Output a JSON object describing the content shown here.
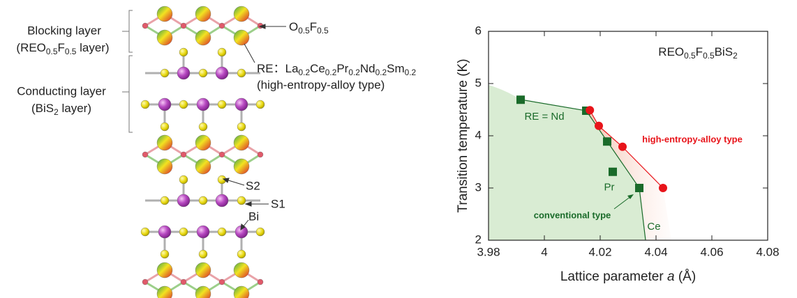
{
  "diagram": {
    "blocking_layer": {
      "label": "Blocking layer",
      "sublabel": [
        "(REO",
        "0.5",
        "F",
        "0.5",
        " layer)"
      ]
    },
    "conducting_layer": {
      "label": "Conducting layer",
      "sublabel": [
        "(BiS",
        "2",
        " layer)"
      ]
    },
    "annotations": {
      "of": [
        "O",
        "0.5",
        "F",
        "0.5"
      ],
      "re": [
        "RE：La",
        "0.2",
        "Ce",
        "0.2",
        "Pr",
        "0.2",
        "Nd",
        "0.2",
        "Sm",
        "0.2"
      ],
      "re_type": "(high-entropy-alloy type)",
      "s2": "S2",
      "s1": "S1",
      "bi": "Bi"
    }
  },
  "chart_data": {
    "type": "scatter",
    "inset_label": [
      "REO",
      "0.5",
      "F",
      "0.5",
      "BiS",
      "2"
    ],
    "x_label": [
      "Lattice parameter ",
      "a",
      " (Å)"
    ],
    "y_label": "Transition temperature (K)",
    "xlim": [
      3.98,
      4.08
    ],
    "xticks": [
      3.98,
      4,
      4.02,
      4.04,
      4.06,
      4.08
    ],
    "ylim": [
      2,
      6
    ],
    "yticks": [
      2,
      3,
      4,
      5,
      6
    ],
    "series": [
      {
        "name": "conventional type",
        "color": "#1a6b2a",
        "marker": "square",
        "x": [
          3.9915,
          4.015,
          4.0225,
          4.0245,
          4.034
        ],
        "values": [
          4.69,
          4.48,
          3.89,
          3.31,
          3.0
        ],
        "point_labels": [
          "RE = Nd",
          null,
          null,
          "Pr",
          "Ce"
        ]
      },
      {
        "name": "high-entropy-alloy type",
        "color": "#e8141a",
        "marker": "circle",
        "x": [
          4.0163,
          4.0195,
          4.028,
          4.0425
        ],
        "values": [
          4.49,
          4.19,
          3.79,
          3.0
        ]
      }
    ]
  }
}
